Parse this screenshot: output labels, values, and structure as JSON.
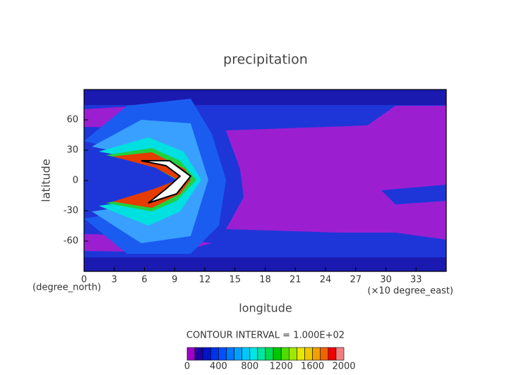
{
  "chart_data": {
    "type": "contour",
    "title": "precipitation",
    "xlabel": "longitude",
    "ylabel": "latitude",
    "xunit": "(×10 degree_east)",
    "yunit": "(degree_north)",
    "xlim": [
      0,
      36
    ],
    "xticks": [
      0,
      3,
      6,
      9,
      12,
      15,
      18,
      21,
      24,
      27,
      30,
      33
    ],
    "ylim": [
      -90,
      90
    ],
    "yticks": [
      60,
      30,
      0,
      -30,
      -60
    ],
    "contour_note": "CONTOUR INTERVAL = 1.000E+02",
    "colorbar": {
      "levels": [
        0,
        100,
        200,
        300,
        400,
        500,
        600,
        700,
        800,
        900,
        1000,
        1100,
        1200,
        1300,
        1400,
        1500,
        1600,
        1700,
        1800,
        1900,
        2000
      ],
      "colors": [
        "#a000c8",
        "#1e00a0",
        "#0014c8",
        "#0032e6",
        "#0050ff",
        "#0078ff",
        "#00a0ff",
        "#00c8ff",
        "#00e6e6",
        "#00e6a0",
        "#00dc50",
        "#00c800",
        "#50dc00",
        "#a0e600",
        "#e6e600",
        "#f0c800",
        "#f0a000",
        "#f06400",
        "#f00000",
        "#f08080"
      ],
      "ticks": [
        0,
        400,
        800,
        1200,
        1600,
        2000
      ]
    }
  }
}
